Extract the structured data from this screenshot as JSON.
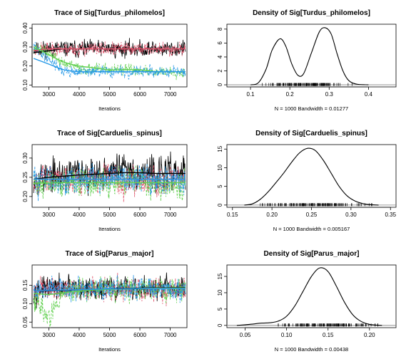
{
  "figure": {
    "background": "#ffffff"
  },
  "chart_data": [
    {
      "type": "line",
      "kind": "trace",
      "title": "Trace of Sig[Turdus_philomelos]",
      "xlabel": "Iterations",
      "xlim": [
        2450,
        7550
      ],
      "ylim": [
        0.09,
        0.42
      ],
      "xticks": [
        3000,
        4000,
        5000,
        6000,
        7000
      ],
      "yticks": [
        0.1,
        0.2,
        0.3,
        0.4
      ],
      "ytick_labels": [
        "0.10",
        "0.20",
        "0.30",
        "0.40"
      ],
      "x": [
        2500,
        3000,
        3500,
        4000,
        4500,
        5000,
        5500,
        6000,
        6500,
        7000,
        7500
      ],
      "series": [
        {
          "color": "#000000",
          "dash": "solid",
          "center": [
            0.29,
            0.29,
            0.29,
            0.29,
            0.29,
            0.29,
            0.29,
            0.29,
            0.29,
            0.29,
            0.29
          ],
          "noise": 0.03,
          "seed": 11
        },
        {
          "color": "#df536b",
          "dash": "3,2",
          "center": [
            0.29,
            0.29,
            0.29,
            0.29,
            0.29,
            0.29,
            0.29,
            0.29,
            0.29,
            0.29,
            0.29
          ],
          "noise": 0.025,
          "seed": 23
        },
        {
          "color": "#61d04f",
          "dash": "3,2",
          "center": [
            0.3,
            0.27,
            0.21,
            0.19,
            0.18,
            0.18,
            0.18,
            0.18,
            0.17,
            0.17,
            0.17
          ],
          "noise": 0.02,
          "seed": 37
        },
        {
          "color": "#2297e6",
          "dash": "3,2",
          "center": [
            0.3,
            0.24,
            0.17,
            0.17,
            0.17,
            0.17,
            0.17,
            0.17,
            0.17,
            0.17,
            0.17
          ],
          "noise": 0.02,
          "seed": 41
        }
      ],
      "smooth": [
        {
          "color": "#000000",
          "values": [
            0.27,
            0.28,
            0.29,
            0.29,
            0.29,
            0.29,
            0.29,
            0.29,
            0.29,
            0.29,
            0.29
          ]
        },
        {
          "color": "#df536b",
          "values": [
            0.28,
            0.29,
            0.29,
            0.29,
            0.29,
            0.29,
            0.29,
            0.29,
            0.29,
            0.29,
            0.29
          ]
        },
        {
          "color": "#61d04f",
          "values": [
            0.3,
            0.26,
            0.22,
            0.2,
            0.19,
            0.18,
            0.18,
            0.18,
            0.17,
            0.17,
            0.17
          ]
        },
        {
          "color": "#2297e6",
          "values": [
            0.24,
            0.21,
            0.18,
            0.17,
            0.17,
            0.17,
            0.17,
            0.17,
            0.17,
            0.17,
            0.17
          ]
        }
      ]
    },
    {
      "type": "line",
      "kind": "density",
      "title": "Density of Sig[Turdus_philomelos]",
      "xlabel": "N = 1000   Bandwidth = 0.01277",
      "xlim": [
        0.04,
        0.47
      ],
      "ylim": [
        -0.3,
        8.7
      ],
      "xticks": [
        0.1,
        0.2,
        0.3,
        0.4
      ],
      "xtick_labels": [
        "0.1",
        "0.2",
        "0.3",
        "0.4"
      ],
      "yticks": [
        0,
        2,
        4,
        6,
        8
      ],
      "ytick_labels": [
        "0",
        "2",
        "4",
        "6",
        "8"
      ],
      "curve": [
        [
          0.1,
          0
        ],
        [
          0.12,
          0.3
        ],
        [
          0.14,
          2.3
        ],
        [
          0.155,
          5.0
        ],
        [
          0.175,
          6.6
        ],
        [
          0.19,
          5.5
        ],
        [
          0.205,
          3.0
        ],
        [
          0.22,
          1.4
        ],
        [
          0.235,
          1.6
        ],
        [
          0.255,
          4.6
        ],
        [
          0.275,
          7.6
        ],
        [
          0.29,
          8.2
        ],
        [
          0.305,
          7.3
        ],
        [
          0.32,
          4.5
        ],
        [
          0.335,
          2.0
        ],
        [
          0.35,
          0.6
        ],
        [
          0.37,
          0.1
        ],
        [
          0.4,
          0
        ]
      ],
      "rug_range": [
        0.13,
        0.36
      ],
      "rug_count": 150,
      "rug_seed": 5
    },
    {
      "type": "line",
      "kind": "trace",
      "title": "Trace of Sig[Carduelis_spinus]",
      "xlabel": "Iterations",
      "xlim": [
        2450,
        7550
      ],
      "ylim": [
        0.172,
        0.335
      ],
      "xticks": [
        3000,
        4000,
        5000,
        6000,
        7000
      ],
      "yticks": [
        0.2,
        0.25,
        0.3
      ],
      "ytick_labels": [
        "0.20",
        "0.25",
        "0.30"
      ],
      "x": [
        2500,
        3000,
        3500,
        4000,
        4500,
        5000,
        5500,
        6000,
        6500,
        7000,
        7500
      ],
      "series": [
        {
          "color": "#000000",
          "dash": "solid",
          "center": [
            0.25,
            0.25,
            0.255,
            0.26,
            0.26,
            0.265,
            0.27,
            0.265,
            0.26,
            0.26,
            0.26
          ],
          "noise": 0.03,
          "seed": 53
        },
        {
          "color": "#df536b",
          "dash": "3,2",
          "center": [
            0.245,
            0.245,
            0.245,
            0.245,
            0.245,
            0.245,
            0.245,
            0.245,
            0.245,
            0.245,
            0.245
          ],
          "noise": 0.025,
          "seed": 67
        },
        {
          "color": "#61d04f",
          "dash": "3,2",
          "center": [
            0.235,
            0.235,
            0.235,
            0.235,
            0.235,
            0.235,
            0.235,
            0.235,
            0.235,
            0.235,
            0.235
          ],
          "noise": 0.025,
          "seed": 71
        },
        {
          "color": "#2297e6",
          "dash": "3,2",
          "center": [
            0.245,
            0.245,
            0.245,
            0.245,
            0.245,
            0.245,
            0.245,
            0.245,
            0.245,
            0.245,
            0.245
          ],
          "noise": 0.025,
          "seed": 83
        }
      ],
      "smooth": [
        {
          "color": "#000000",
          "values": [
            0.245,
            0.25,
            0.253,
            0.256,
            0.258,
            0.26,
            0.262,
            0.262,
            0.26,
            0.26,
            0.26
          ]
        },
        {
          "color": "#df536b",
          "values": [
            0.245,
            0.245,
            0.245,
            0.245,
            0.245,
            0.245,
            0.245,
            0.245,
            0.245,
            0.245,
            0.245
          ]
        },
        {
          "color": "#61d04f",
          "values": [
            0.235,
            0.235,
            0.236,
            0.236,
            0.236,
            0.236,
            0.236,
            0.236,
            0.236,
            0.236,
            0.236
          ]
        },
        {
          "color": "#2297e6",
          "values": [
            0.245,
            0.245,
            0.245,
            0.245,
            0.245,
            0.245,
            0.245,
            0.245,
            0.245,
            0.245,
            0.245
          ]
        }
      ]
    },
    {
      "type": "line",
      "kind": "density",
      "title": "Density of Sig[Carduelis_spinus]",
      "xlabel": "N = 1000   Bandwidth = 0.005167",
      "xlim": [
        0.143,
        0.357
      ],
      "ylim": [
        -0.6,
        16.2
      ],
      "xticks": [
        0.15,
        0.2,
        0.25,
        0.3,
        0.35
      ],
      "xtick_labels": [
        "0.15",
        "0.20",
        "0.25",
        "0.30",
        "0.35"
      ],
      "yticks": [
        0,
        5,
        10,
        15
      ],
      "ytick_labels": [
        "0",
        "5",
        "10",
        "15"
      ],
      "curve": [
        [
          0.165,
          0
        ],
        [
          0.175,
          0.3
        ],
        [
          0.185,
          1.5
        ],
        [
          0.195,
          3.5
        ],
        [
          0.205,
          6.0
        ],
        [
          0.215,
          8.6
        ],
        [
          0.225,
          11.5
        ],
        [
          0.235,
          14.0
        ],
        [
          0.245,
          15.2
        ],
        [
          0.255,
          14.6
        ],
        [
          0.265,
          12.0
        ],
        [
          0.275,
          8.5
        ],
        [
          0.285,
          5.0
        ],
        [
          0.295,
          2.5
        ],
        [
          0.305,
          1.1
        ],
        [
          0.315,
          0.4
        ],
        [
          0.325,
          0.1
        ],
        [
          0.335,
          0
        ]
      ],
      "rug_range": [
        0.18,
        0.33
      ],
      "rug_count": 150,
      "rug_seed": 9
    },
    {
      "type": "line",
      "kind": "trace",
      "title": "Trace of Sig[Parus_major]",
      "xlabel": "Iterations",
      "xlim": [
        2450,
        7550
      ],
      "ylim": [
        0.035,
        0.205
      ],
      "xticks": [
        3000,
        4000,
        5000,
        6000,
        7000
      ],
      "yticks": [
        0.05,
        0.1,
        0.15
      ],
      "ytick_labels": [
        "0.05",
        "0.10",
        "0.15"
      ],
      "x": [
        2500,
        3000,
        3500,
        4000,
        4500,
        5000,
        5500,
        6000,
        6500,
        7000,
        7500
      ],
      "series": [
        {
          "color": "#000000",
          "dash": "solid",
          "center": [
            0.14,
            0.14,
            0.14,
            0.14,
            0.14,
            0.14,
            0.14,
            0.14,
            0.14,
            0.14,
            0.14
          ],
          "noise": 0.022,
          "seed": 97
        },
        {
          "color": "#df536b",
          "dash": "3,2",
          "center": [
            0.135,
            0.14,
            0.14,
            0.14,
            0.14,
            0.14,
            0.14,
            0.14,
            0.14,
            0.14,
            0.14
          ],
          "noise": 0.022,
          "seed": 101
        },
        {
          "color": "#61d04f",
          "dash": "3,2",
          "center": [
            0.12,
            0.06,
            0.13,
            0.14,
            0.14,
            0.14,
            0.14,
            0.14,
            0.14,
            0.14,
            0.14
          ],
          "noise": 0.022,
          "seed": 113
        },
        {
          "color": "#2297e6",
          "dash": "3,2",
          "center": [
            0.14,
            0.14,
            0.14,
            0.14,
            0.14,
            0.14,
            0.14,
            0.14,
            0.14,
            0.14,
            0.14
          ],
          "noise": 0.02,
          "seed": 127
        }
      ],
      "smooth": [
        {
          "color": "#000000",
          "values": [
            0.135,
            0.135,
            0.136,
            0.138,
            0.139,
            0.14,
            0.141,
            0.142,
            0.143,
            0.143,
            0.143
          ]
        },
        {
          "color": "#df536b",
          "values": [
            0.135,
            0.136,
            0.137,
            0.138,
            0.139,
            0.14,
            0.14,
            0.141,
            0.141,
            0.141,
            0.141
          ]
        },
        {
          "color": "#61d04f",
          "values": [
            0.128,
            0.125,
            0.13,
            0.134,
            0.137,
            0.139,
            0.14,
            0.141,
            0.142,
            0.142,
            0.142
          ]
        },
        {
          "color": "#2297e6",
          "values": [
            0.135,
            0.136,
            0.137,
            0.138,
            0.139,
            0.14,
            0.14,
            0.141,
            0.141,
            0.141,
            0.141
          ]
        }
      ]
    },
    {
      "type": "line",
      "kind": "density",
      "title": "Density of Sig[Parus_major]",
      "xlabel": "N = 1000   Bandwidth = 0.00438",
      "xlim": [
        0.028,
        0.232
      ],
      "ylim": [
        -0.7,
        18.5
      ],
      "xticks": [
        0.05,
        0.1,
        0.15,
        0.2
      ],
      "xtick_labels": [
        "0.05",
        "0.10",
        "0.15",
        "0.20"
      ],
      "yticks": [
        0,
        5,
        10,
        15
      ],
      "ytick_labels": [
        "0",
        "5",
        "10",
        "15"
      ],
      "curve": [
        [
          0.04,
          0
        ],
        [
          0.055,
          0.3
        ],
        [
          0.07,
          0.7
        ],
        [
          0.08,
          0.8
        ],
        [
          0.09,
          1.3
        ],
        [
          0.1,
          2.8
        ],
        [
          0.11,
          6.0
        ],
        [
          0.12,
          10.5
        ],
        [
          0.13,
          15.0
        ],
        [
          0.14,
          17.6
        ],
        [
          0.15,
          16.5
        ],
        [
          0.16,
          12.0
        ],
        [
          0.17,
          7.0
        ],
        [
          0.18,
          3.2
        ],
        [
          0.19,
          1.2
        ],
        [
          0.2,
          0.3
        ],
        [
          0.215,
          0
        ]
      ],
      "rug_range": [
        0.09,
        0.21
      ],
      "rug_count": 150,
      "rug_seed": 13
    }
  ]
}
